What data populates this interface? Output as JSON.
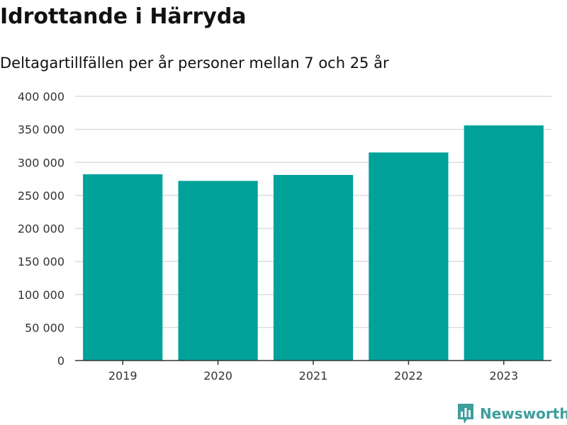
{
  "header": {
    "title": "Idrottande i Härryda",
    "subtitle": "Deltagartillfällen per år personer mellan 7 och 25 år"
  },
  "brand": {
    "name": "Newsworthy",
    "icon": "newsworthy-logo-icon",
    "color": "#3d9e9b"
  },
  "chart_data": {
    "type": "bar",
    "title": "Idrottande i Härryda",
    "subtitle": "Deltagartillfällen per år personer mellan 7 och 25 år",
    "xlabel": "",
    "ylabel": "",
    "categories": [
      "2019",
      "2020",
      "2021",
      "2022",
      "2023"
    ],
    "values": [
      282000,
      272000,
      281000,
      315000,
      356000
    ],
    "ylim": [
      0,
      400000
    ],
    "yticks": [
      0,
      50000,
      100000,
      150000,
      200000,
      250000,
      300000,
      350000,
      400000
    ],
    "ytick_labels": [
      "0",
      "50 000",
      "100 000",
      "150 000",
      "200 000",
      "250 000",
      "300 000",
      "350 000",
      "400 000"
    ],
    "grid": true,
    "legend": "none",
    "bar_color": "#00a29a"
  }
}
